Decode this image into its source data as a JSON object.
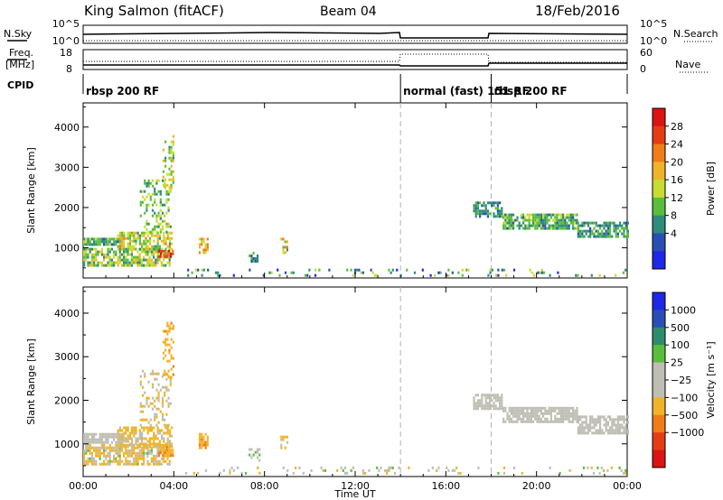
{
  "header": {
    "station": "King Salmon (fitACF)",
    "beam": "Beam 04",
    "date": "18/Feb/2016"
  },
  "summary": {
    "nsky_label": "N.Sky",
    "nsearch_label": "N.Search",
    "freq_label_line1": "Freq.",
    "freq_label_line2": "[MHz]",
    "nave_label": "Nave",
    "cpid_label": "CPID",
    "nsky_ticks": [
      "10^5",
      "10^0"
    ],
    "nsearch_ticks": [
      "10^5",
      "10^0"
    ],
    "freq_ticks": [
      "18",
      "8"
    ],
    "nave_ticks": [
      "60",
      "0"
    ],
    "cpid_segments": [
      {
        "label": "rbsp 200 RF",
        "start": 0.0
      },
      {
        "label": "normal (fast) 151 RF",
        "start": 14.0
      },
      {
        "label": "rbsp 200 RF",
        "start": 18.0
      }
    ]
  },
  "panels": {
    "power": {
      "ylabel": "Slant Range [km]",
      "colorbar_label": "Power [dB]",
      "colorbar_ticks": [
        "28",
        "24",
        "20",
        "16",
        "12",
        "8",
        "4"
      ]
    },
    "velocity": {
      "ylabel": "Slant Range [km]",
      "colorbar_label": "Velocity [m s⁻¹]",
      "colorbar_ticks": [
        "1000",
        "500",
        "100",
        "25",
        "−25",
        "−100",
        "−500",
        "−1000"
      ]
    }
  },
  "xaxis": {
    "label": "Time UT",
    "ticks": [
      "00:00",
      "04:00",
      "08:00",
      "12:00",
      "16:00",
      "20:00",
      "00:00"
    ]
  },
  "colors": {
    "power_scale": [
      "#1e28e6",
      "#2850b4",
      "#2e8c7a",
      "#5abe3c",
      "#c8dc32",
      "#f0b428",
      "#f07d19",
      "#e63c14",
      "#dc1414"
    ],
    "velocity_scale": [
      "#1e28e6",
      "#2850b4",
      "#2e8c6e",
      "#5abe3c",
      "#bebeb4",
      "#bebeb4",
      "#f0b428",
      "#f07d19",
      "#e63c14",
      "#dc1414"
    ],
    "mode_change": "#b4b4b4"
  },
  "chart_data": [
    {
      "type": "heatmap",
      "name": "Power",
      "x_unit": "hours UT",
      "y_unit": "km",
      "xlim": [
        0,
        24
      ],
      "ylim": [
        250,
        4600
      ],
      "x_ticks": [
        0,
        4,
        8,
        12,
        16,
        20,
        24
      ],
      "y_ticks": [
        1000,
        2000,
        3000,
        4000
      ],
      "colorbar_range": [
        0,
        32
      ],
      "mode_changes": [
        14.0,
        18.0
      ],
      "echo_regions": [
        {
          "t0": 0.0,
          "t1": 1.8,
          "r0": 1050,
          "r1": 1250,
          "vmin": 6,
          "vmax": 16,
          "density": 0.9
        },
        {
          "t0": 0.0,
          "t1": 3.8,
          "r0": 550,
          "r1": 1000,
          "vmin": 8,
          "vmax": 20,
          "density": 0.7
        },
        {
          "t0": 1.5,
          "t1": 3.9,
          "r0": 950,
          "r1": 1400,
          "vmin": 10,
          "vmax": 22,
          "density": 0.6
        },
        {
          "t0": 2.5,
          "t1": 3.9,
          "r0": 1400,
          "r1": 2700,
          "vmin": 8,
          "vmax": 18,
          "density": 0.3
        },
        {
          "t0": 3.5,
          "t1": 4.0,
          "r0": 2500,
          "r1": 3800,
          "vmin": 10,
          "vmax": 20,
          "density": 0.35
        },
        {
          "t0": 3.3,
          "t1": 4.0,
          "r0": 750,
          "r1": 950,
          "vmin": 24,
          "vmax": 30,
          "density": 0.8
        },
        {
          "t0": 5.1,
          "t1": 5.5,
          "r0": 900,
          "r1": 1250,
          "vmin": 14,
          "vmax": 26,
          "density": 0.7
        },
        {
          "t0": 7.3,
          "t1": 7.8,
          "r0": 650,
          "r1": 900,
          "vmin": 6,
          "vmax": 14,
          "density": 0.4
        },
        {
          "t0": 8.7,
          "t1": 9.0,
          "r0": 900,
          "r1": 1250,
          "vmin": 10,
          "vmax": 22,
          "density": 0.5
        },
        {
          "t0": 4.5,
          "t1": 24.0,
          "r0": 300,
          "r1": 480,
          "vmin": 2,
          "vmax": 18,
          "density": 0.12
        },
        {
          "t0": 17.2,
          "t1": 18.5,
          "r0": 1800,
          "r1": 2150,
          "vmin": 4,
          "vmax": 14,
          "density": 0.75
        },
        {
          "t0": 18.5,
          "t1": 21.8,
          "r0": 1500,
          "r1": 1850,
          "vmin": 6,
          "vmax": 16,
          "density": 0.8
        },
        {
          "t0": 21.8,
          "t1": 24.0,
          "r0": 1250,
          "r1": 1650,
          "vmin": 6,
          "vmax": 14,
          "density": 0.7
        }
      ]
    },
    {
      "type": "heatmap",
      "name": "Velocity",
      "x_unit": "hours UT",
      "y_unit": "km",
      "xlim": [
        0,
        24
      ],
      "ylim": [
        250,
        4600
      ],
      "x_ticks": [
        0,
        4,
        8,
        12,
        16,
        20,
        24
      ],
      "y_ticks": [
        1000,
        2000,
        3000,
        4000
      ],
      "colorbar_levels": [
        1000,
        500,
        100,
        25,
        -25,
        -100,
        -500,
        -1000
      ],
      "mode_changes": [
        14.0,
        18.0
      ],
      "echo_regions": [
        {
          "t0": 0.0,
          "t1": 1.8,
          "r0": 1050,
          "r1": 1250,
          "vmin": -20,
          "vmax": 20,
          "density": 0.9
        },
        {
          "t0": 0.0,
          "t1": 3.8,
          "r0": 550,
          "r1": 1000,
          "vmin": -300,
          "vmax": 50,
          "density": 0.7
        },
        {
          "t0": 1.5,
          "t1": 3.9,
          "r0": 950,
          "r1": 1400,
          "vmin": -400,
          "vmax": 20,
          "density": 0.6
        },
        {
          "t0": 2.5,
          "t1": 3.9,
          "r0": 1400,
          "r1": 2700,
          "vmin": -200,
          "vmax": 20,
          "density": 0.3
        },
        {
          "t0": 3.5,
          "t1": 4.0,
          "r0": 2500,
          "r1": 3800,
          "vmin": -600,
          "vmax": -100,
          "density": 0.35
        },
        {
          "t0": 3.3,
          "t1": 4.0,
          "r0": 750,
          "r1": 950,
          "vmin": -700,
          "vmax": -200,
          "density": 0.8
        },
        {
          "t0": 5.1,
          "t1": 5.5,
          "r0": 900,
          "r1": 1250,
          "vmin": -600,
          "vmax": -150,
          "density": 0.7
        },
        {
          "t0": 7.3,
          "t1": 7.8,
          "r0": 650,
          "r1": 900,
          "vmin": -100,
          "vmax": 100,
          "density": 0.4
        },
        {
          "t0": 8.7,
          "t1": 9.0,
          "r0": 900,
          "r1": 1250,
          "vmin": -300,
          "vmax": -50,
          "density": 0.5
        },
        {
          "t0": 4.5,
          "t1": 24.0,
          "r0": 300,
          "r1": 480,
          "vmin": -150,
          "vmax": 50,
          "density": 0.12
        },
        {
          "t0": 17.2,
          "t1": 18.5,
          "r0": 1800,
          "r1": 2150,
          "vmin": -20,
          "vmax": 20,
          "density": 0.75
        },
        {
          "t0": 18.5,
          "t1": 21.8,
          "r0": 1500,
          "r1": 1850,
          "vmin": -20,
          "vmax": 20,
          "density": 0.8
        },
        {
          "t0": 21.8,
          "t1": 24.0,
          "r0": 1250,
          "r1": 1650,
          "vmin": -20,
          "vmax": 20,
          "density": 0.7
        }
      ]
    }
  ]
}
